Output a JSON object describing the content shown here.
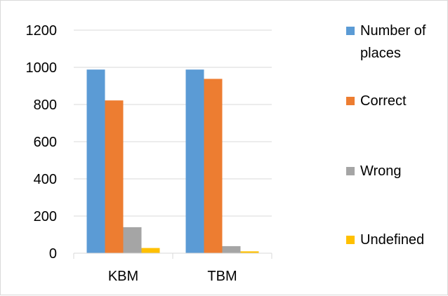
{
  "chart_data": {
    "type": "bar",
    "title": "",
    "xlabel": "",
    "ylabel": "",
    "categories": [
      "KBM",
      "TBM"
    ],
    "ylim": [
      0,
      1200
    ],
    "yticks": [
      0,
      200,
      400,
      600,
      800,
      1000,
      1200
    ],
    "grid": true,
    "legend_position": "right",
    "series": [
      {
        "name": "Number of places",
        "legend_lines": [
          "Number of",
          "places"
        ],
        "color": "#5b9bd5",
        "values": [
          988,
          988
        ]
      },
      {
        "name": "Correct",
        "legend_lines": [
          "Correct"
        ],
        "color": "#ed7d31",
        "values": [
          822,
          938
        ]
      },
      {
        "name": "Wrong",
        "legend_lines": [
          "Wrong"
        ],
        "color": "#a5a5a5",
        "values": [
          140,
          38
        ]
      },
      {
        "name": "Undefined",
        "legend_lines": [
          "Undefined"
        ],
        "color": "#ffc000",
        "values": [
          28,
          10
        ]
      }
    ]
  }
}
